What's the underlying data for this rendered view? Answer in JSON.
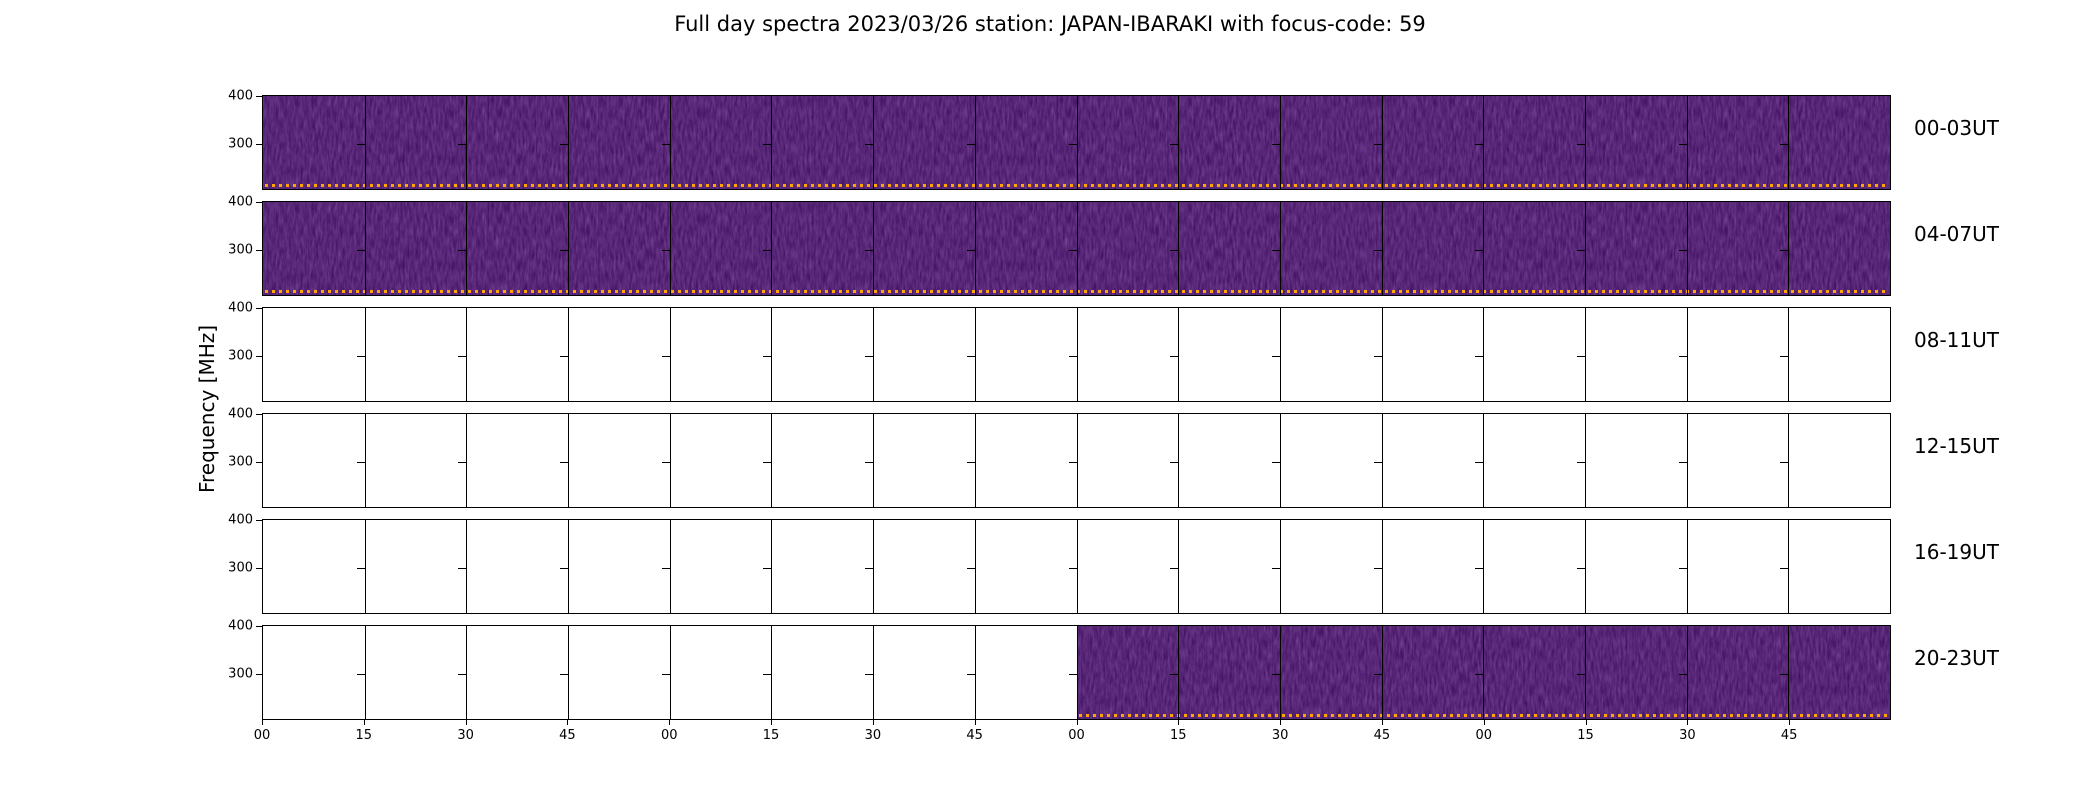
{
  "title": "Full day spectra 2023/03/26 station: JAPAN-IBARAKI with focus-code: 59",
  "ylabel": "Frequency [MHz]",
  "y_tick_labels": [
    "400",
    "300"
  ],
  "x_tick_labels": [
    "00",
    "15",
    "30",
    "45",
    "00",
    "15",
    "30",
    "45",
    "00",
    "15",
    "30",
    "45",
    "00",
    "15",
    "30",
    "45"
  ],
  "rows": [
    {
      "label": "00-03UT",
      "fill_from": 0
    },
    {
      "label": "04-07UT",
      "fill_from": 0
    },
    {
      "label": "08-11UT",
      "fill_from": null
    },
    {
      "label": "12-15UT",
      "fill_from": null
    },
    {
      "label": "16-19UT",
      "fill_from": null
    },
    {
      "label": "20-23UT",
      "fill_from": 0.5
    }
  ],
  "colors": {
    "spectrogram_base": "#38095b",
    "spectrogram_noise": "#6b2e8c",
    "flag_dots": "#ffa400",
    "axes": "#000000",
    "background": "#ffffff"
  },
  "chart_data": {
    "type": "heatmap",
    "title": "Full day spectra 2023/03/26 station: JAPAN-IBARAKI with focus-code: 59",
    "ylabel": "Frequency [MHz]",
    "y_ticks_mhz": [
      400,
      300
    ],
    "x_axis": {
      "tick_labels_minutes": [
        "00",
        "15",
        "30",
        "45"
      ],
      "repeats_per_row": 4,
      "segments_per_row": 16,
      "segment_duration_minutes": 15
    },
    "legend": "none",
    "grid": "vertical 15-minute segment boundaries in every row",
    "panels": [
      {
        "label": "00-03UT",
        "data_present": true,
        "coverage_fraction": [
          0,
          1
        ],
        "appearance": "dark purple spectrogram with orange dotted line at bottom"
      },
      {
        "label": "04-07UT",
        "data_present": true,
        "coverage_fraction": [
          0,
          1
        ],
        "appearance": "dark purple spectrogram with orange dotted line at bottom"
      },
      {
        "label": "08-11UT",
        "data_present": false,
        "coverage_fraction": null,
        "appearance": "empty white panel"
      },
      {
        "label": "12-15UT",
        "data_present": false,
        "coverage_fraction": null,
        "appearance": "empty white panel"
      },
      {
        "label": "16-19UT",
        "data_present": false,
        "coverage_fraction": null,
        "appearance": "empty white panel"
      },
      {
        "label": "20-23UT",
        "data_present": "partial",
        "coverage_fraction": [
          0.5,
          1
        ],
        "appearance": "white left half, dark purple spectrogram right half with orange dotted line"
      }
    ]
  }
}
